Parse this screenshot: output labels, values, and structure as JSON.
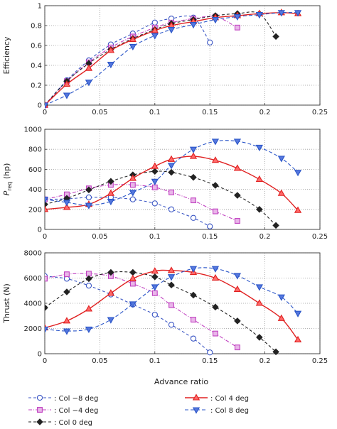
{
  "chart_data": [
    {
      "type": "line",
      "ylabel": "Efficiency",
      "xlabel": "",
      "xlim": [
        0,
        0.25
      ],
      "ylim": [
        0,
        1
      ],
      "xticks": [
        "0",
        "0.05",
        "0.1",
        "0.15",
        "0.2",
        "0.25"
      ],
      "yticks": [
        "0",
        "0.2",
        "0.4",
        "0.6",
        "0.8",
        "1"
      ],
      "grid": true,
      "series": [
        {
          "name": "Col −8 deg",
          "x": [
            0,
            0.02,
            0.04,
            0.06,
            0.08,
            0.1,
            0.115,
            0.135,
            0.15
          ],
          "y": [
            0,
            0.25,
            0.45,
            0.61,
            0.72,
            0.83,
            0.87,
            0.88,
            0.63
          ]
        },
        {
          "name": "Col −4 deg",
          "x": [
            0,
            0.02,
            0.04,
            0.06,
            0.08,
            0.1,
            0.115,
            0.135,
            0.155,
            0.175
          ],
          "y": [
            0,
            0.24,
            0.43,
            0.58,
            0.69,
            0.78,
            0.83,
            0.87,
            0.89,
            0.78
          ]
        },
        {
          "name": "Col 0 deg",
          "x": [
            0,
            0.02,
            0.04,
            0.06,
            0.08,
            0.1,
            0.115,
            0.135,
            0.155,
            0.175,
            0.195,
            0.21
          ],
          "y": [
            0,
            0.24,
            0.42,
            0.56,
            0.67,
            0.76,
            0.82,
            0.86,
            0.9,
            0.92,
            0.92,
            0.69
          ]
        },
        {
          "name": "Col 4 deg",
          "x": [
            0,
            0.02,
            0.04,
            0.06,
            0.08,
            0.1,
            0.115,
            0.135,
            0.155,
            0.175,
            0.195,
            0.215,
            0.23
          ],
          "y": [
            0,
            0.21,
            0.37,
            0.55,
            0.66,
            0.75,
            0.8,
            0.84,
            0.88,
            0.9,
            0.92,
            0.93,
            0.92
          ]
        },
        {
          "name": "Col 8 deg",
          "x": [
            0,
            0.02,
            0.04,
            0.06,
            0.08,
            0.1,
            0.115,
            0.135,
            0.155,
            0.175,
            0.195,
            0.215,
            0.23
          ],
          "y": [
            0,
            0.1,
            0.23,
            0.41,
            0.59,
            0.7,
            0.76,
            0.81,
            0.86,
            0.89,
            0.91,
            0.93,
            0.93
          ]
        }
      ]
    },
    {
      "type": "line",
      "ylabel": "P_req (hp)",
      "xlabel": "",
      "xlim": [
        0,
        0.25
      ],
      "ylim": [
        0,
        1000
      ],
      "xticks": [
        "0",
        "0.05",
        "0.1",
        "0.15",
        "0.2",
        "0.25"
      ],
      "yticks": [
        "0",
        "200",
        "400",
        "600",
        "800",
        "1000"
      ],
      "grid": true,
      "series": [
        {
          "name": "Col −8 deg",
          "x": [
            0,
            0.02,
            0.04,
            0.06,
            0.08,
            0.1,
            0.115,
            0.135,
            0.15
          ],
          "y": [
            300,
            305,
            320,
            320,
            300,
            260,
            200,
            115,
            30
          ]
        },
        {
          "name": "Col −4 deg",
          "x": [
            0,
            0.02,
            0.04,
            0.06,
            0.08,
            0.1,
            0.115,
            0.135,
            0.155,
            0.175
          ],
          "y": [
            300,
            350,
            410,
            445,
            445,
            420,
            370,
            290,
            180,
            85
          ]
        },
        {
          "name": "Col 0 deg",
          "x": [
            0,
            0.02,
            0.04,
            0.06,
            0.08,
            0.1,
            0.115,
            0.135,
            0.155,
            0.175,
            0.195,
            0.21
          ],
          "y": [
            250,
            310,
            395,
            480,
            545,
            580,
            570,
            520,
            440,
            340,
            200,
            40
          ]
        },
        {
          "name": "Col 4 deg",
          "x": [
            0,
            0.02,
            0.04,
            0.06,
            0.08,
            0.1,
            0.115,
            0.135,
            0.155,
            0.175,
            0.195,
            0.215,
            0.23
          ],
          "y": [
            200,
            220,
            250,
            360,
            510,
            630,
            700,
            730,
            690,
            610,
            500,
            360,
            190
          ]
        },
        {
          "name": "Col 8 deg",
          "x": [
            0,
            0.02,
            0.04,
            0.06,
            0.08,
            0.1,
            0.115,
            0.135,
            0.155,
            0.175,
            0.195,
            0.215,
            0.23
          ],
          "y": [
            300,
            270,
            240,
            280,
            370,
            480,
            640,
            800,
            880,
            880,
            820,
            710,
            570
          ]
        }
      ]
    },
    {
      "type": "line",
      "ylabel": "Thrust (N)",
      "xlabel": "Advance ratio",
      "xlim": [
        0,
        0.25
      ],
      "ylim": [
        0,
        8000
      ],
      "xticks": [
        "0",
        "0.05",
        "0.1",
        "0.15",
        "0.2",
        "0.25"
      ],
      "yticks": [
        "0",
        "2000",
        "4000",
        "6000",
        "8000"
      ],
      "grid": true,
      "series": [
        {
          "name": "Col −8 deg",
          "x": [
            0,
            0.02,
            0.04,
            0.06,
            0.08,
            0.1,
            0.115,
            0.135,
            0.15
          ],
          "y": [
            6150,
            5950,
            5400,
            4700,
            3900,
            3100,
            2300,
            1200,
            100
          ]
        },
        {
          "name": "Col −4 deg",
          "x": [
            0,
            0.02,
            0.04,
            0.06,
            0.08,
            0.1,
            0.115,
            0.135,
            0.155,
            0.175
          ],
          "y": [
            5950,
            6300,
            6350,
            6150,
            5550,
            4800,
            3850,
            2700,
            1600,
            500
          ]
        },
        {
          "name": "Col 0 deg",
          "x": [
            0,
            0.02,
            0.04,
            0.06,
            0.08,
            0.1,
            0.115,
            0.135,
            0.155,
            0.175,
            0.195,
            0.21
          ],
          "y": [
            3650,
            4900,
            5950,
            6450,
            6450,
            6100,
            5450,
            4650,
            3700,
            2600,
            1300,
            150
          ]
        },
        {
          "name": "Col 4 deg",
          "x": [
            0,
            0.02,
            0.04,
            0.06,
            0.08,
            0.1,
            0.115,
            0.135,
            0.155,
            0.175,
            0.195,
            0.215,
            0.23
          ],
          "y": [
            2050,
            2600,
            3550,
            4800,
            5950,
            6550,
            6600,
            6450,
            6000,
            5100,
            4000,
            2800,
            1100
          ]
        },
        {
          "name": "Col 8 deg",
          "x": [
            0,
            0.02,
            0.04,
            0.06,
            0.08,
            0.1,
            0.115,
            0.135,
            0.155,
            0.175,
            0.195,
            0.215,
            0.23
          ],
          "y": [
            1950,
            1800,
            1950,
            2700,
            3950,
            5300,
            6100,
            6750,
            6750,
            6200,
            5300,
            4500,
            3200
          ]
        }
      ]
    }
  ],
  "legend": [
    {
      "series": 0,
      "label": ": Col −8 deg",
      "color": "#3b56c4",
      "marker": "circle",
      "dash": "4,3"
    },
    {
      "series": 1,
      "label": ": Col −4 deg",
      "color": "#c040c0",
      "marker": "square",
      "dash": "5,2,1,2"
    },
    {
      "series": 2,
      "label": ": Col 0 deg",
      "color": "#222222",
      "marker": "diamond",
      "dash": "4,3"
    },
    {
      "series": 3,
      "label": ": Col 4 deg",
      "color": "#e02020",
      "marker": "triangle-up",
      "dash": ""
    },
    {
      "series": 4,
      "label": ": Col 8 deg",
      "color": "#2a55c8",
      "marker": "triangle-down",
      "dash": "5,3"
    }
  ]
}
